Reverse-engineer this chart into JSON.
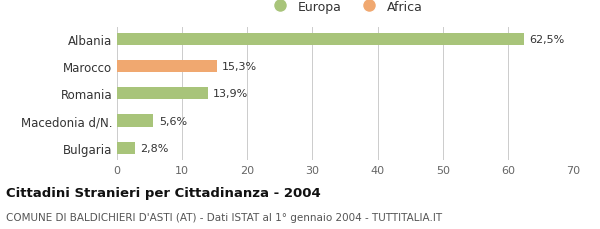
{
  "categories": [
    "Albania",
    "Marocco",
    "Romania",
    "Macedonia d/N.",
    "Bulgaria"
  ],
  "values": [
    62.5,
    15.3,
    13.9,
    5.6,
    2.8
  ],
  "labels": [
    "62,5%",
    "15,3%",
    "13,9%",
    "5,6%",
    "2,8%"
  ],
  "bar_colors": [
    "#a8c47a",
    "#f0a870",
    "#a8c47a",
    "#a8c47a",
    "#a8c47a"
  ],
  "legend_labels": [
    "Europa",
    "Africa"
  ],
  "legend_colors": [
    "#a8c47a",
    "#f0a870"
  ],
  "xlim": [
    0,
    70
  ],
  "xticks": [
    0,
    10,
    20,
    30,
    40,
    50,
    60,
    70
  ],
  "title_bold": "Cittadini Stranieri per Cittadinanza - 2004",
  "subtitle": "COMUNE DI BALDICHIERI D'ASTI (AT) - Dati ISTAT al 1° gennaio 2004 - TUTTITALIA.IT",
  "background_color": "#ffffff",
  "grid_color": "#cccccc",
  "bar_label_fontsize": 8,
  "ytick_fontsize": 8.5,
  "xtick_fontsize": 8,
  "title_fontsize": 9.5,
  "subtitle_fontsize": 7.5,
  "legend_fontsize": 9,
  "bar_height": 0.45
}
